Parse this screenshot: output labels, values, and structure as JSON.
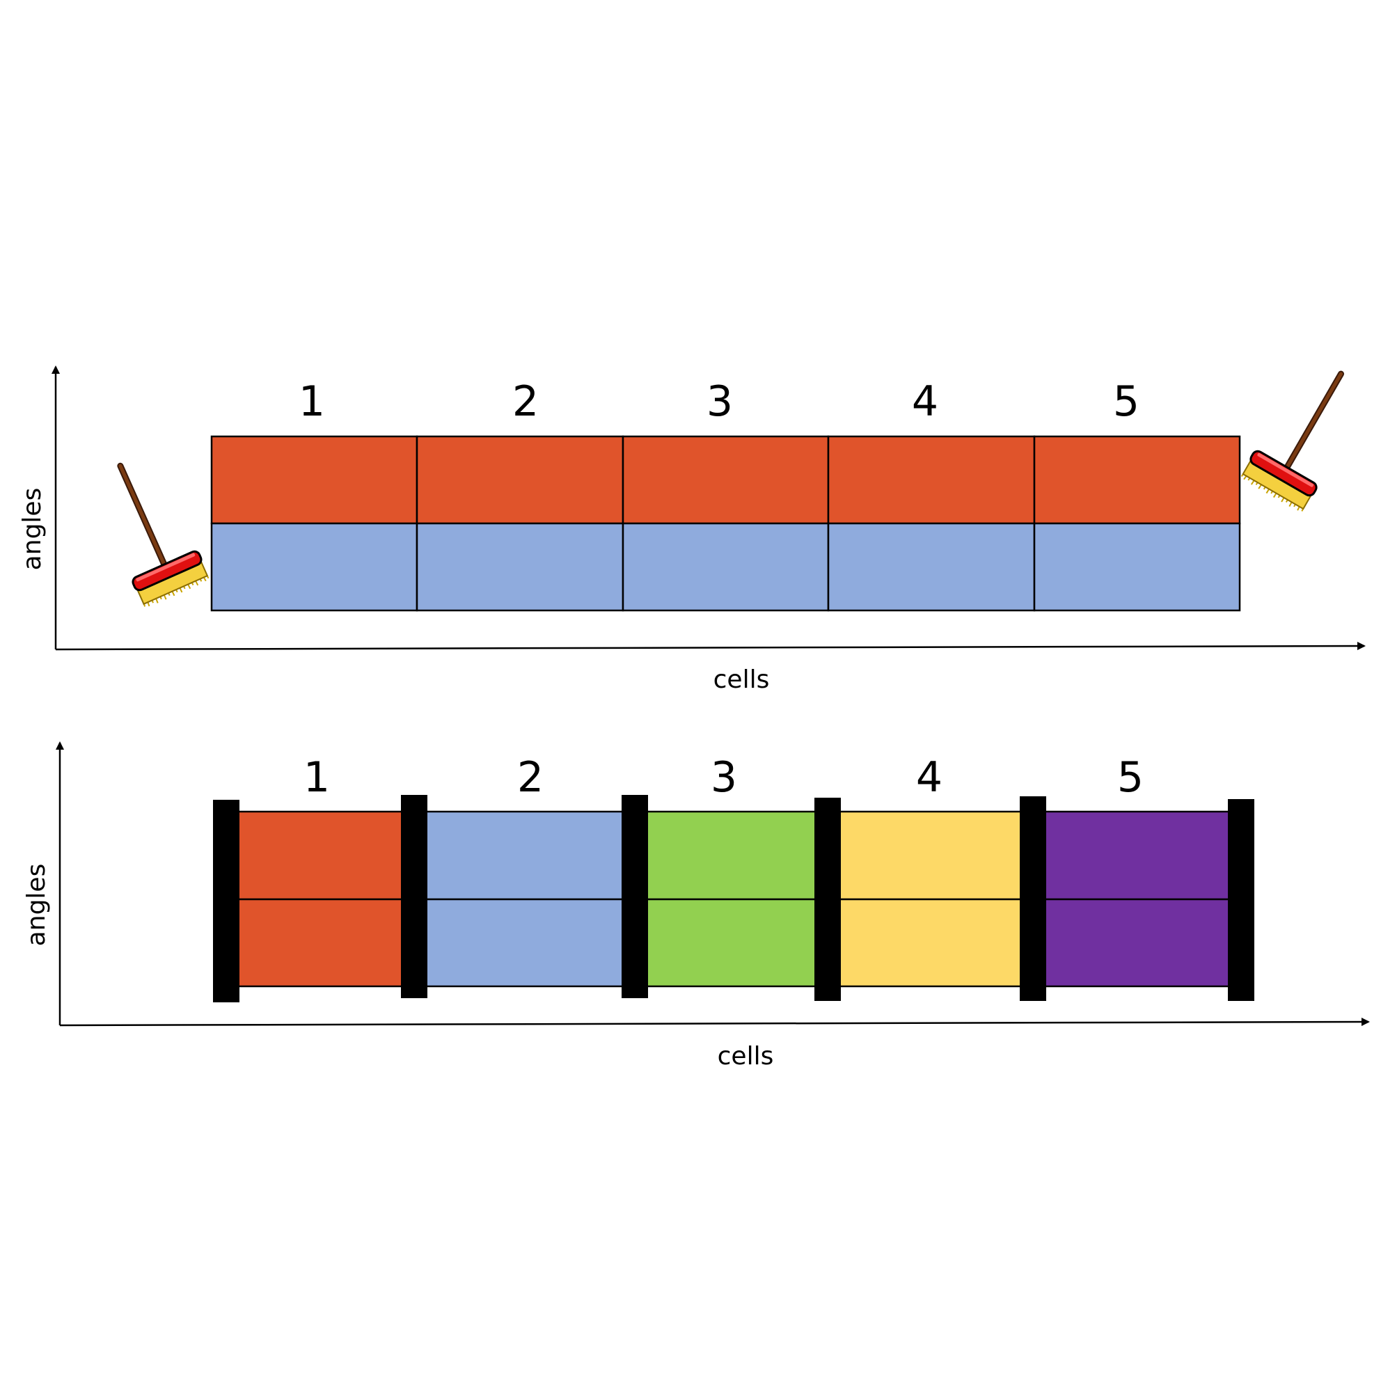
{
  "colors": {
    "red": "#E0542B",
    "blue": "#8FABDD",
    "green": "#92D050",
    "yellow": "#FDD967",
    "purple": "#7030A0",
    "black": "#000000"
  },
  "top_panel": {
    "x_axis_label": "cells",
    "y_axis_label": "angles",
    "cell_numbers": [
      "1",
      "2",
      "3",
      "4",
      "5"
    ],
    "upper_row_color": "red",
    "lower_row_color": "blue",
    "left_icon": "broom-icon",
    "right_icon": "broom-icon"
  },
  "bottom_panel": {
    "x_axis_label": "cells",
    "y_axis_label": "angles",
    "cell_numbers": [
      "1",
      "2",
      "3",
      "4",
      "5"
    ],
    "cell_colors": [
      "red",
      "blue",
      "green",
      "yellow",
      "purple"
    ],
    "boundary_icon": "black-bar"
  }
}
